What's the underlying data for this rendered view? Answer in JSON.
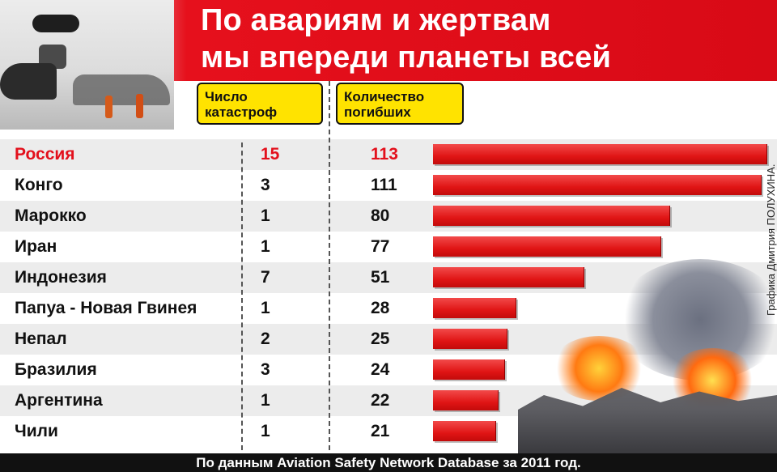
{
  "header": {
    "title": "По авариям и жертвам\nмы впереди планеты всей",
    "accent_color": "#e3101c",
    "tag_color": "#ffe300"
  },
  "columns": {
    "count_label": "Число\nкатастроф",
    "deaths_label": "Количество\nпогибших"
  },
  "credit": "Графика Дмитрия ПОЛУХИНА.",
  "footer": "По данным Aviation Safety Network Database за 2011 год.",
  "photos": [
    "crash-site-photo",
    "burning-wreckage-photo"
  ],
  "chart_data": {
    "type": "table",
    "title": "По авариям и жертвам мы впереди планеты всей",
    "columns": [
      "",
      "Число катастроф",
      "Количество погибших"
    ],
    "highlighted": "Россия",
    "bar_series": "Количество погибших",
    "rows": [
      {
        "country": "Россия",
        "crashes": 15,
        "deaths": 113
      },
      {
        "country": "Конго",
        "crashes": 3,
        "deaths": 111
      },
      {
        "country": "Марокко",
        "crashes": 1,
        "deaths": 80
      },
      {
        "country": "Иран",
        "crashes": 1,
        "deaths": 77
      },
      {
        "country": "Индонезия",
        "crashes": 7,
        "deaths": 51
      },
      {
        "country": "Папуа - Новая Гвинея",
        "crashes": 1,
        "deaths": 28
      },
      {
        "country": "Непал",
        "crashes": 2,
        "deaths": 25
      },
      {
        "country": "Бразилия",
        "crashes": 3,
        "deaths": 24
      },
      {
        "country": "Аргентина",
        "crashes": 1,
        "deaths": 22
      },
      {
        "country": "Чили",
        "crashes": 1,
        "deaths": 21
      }
    ]
  }
}
